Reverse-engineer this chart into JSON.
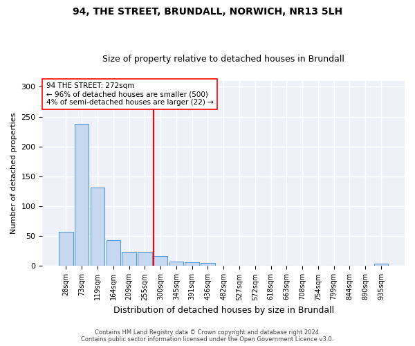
{
  "title1": "94, THE STREET, BRUNDALL, NORWICH, NR13 5LH",
  "title2": "Size of property relative to detached houses in Brundall",
  "xlabel": "Distribution of detached houses by size in Brundall",
  "ylabel": "Number of detached properties",
  "bar_labels": [
    "28sqm",
    "73sqm",
    "119sqm",
    "164sqm",
    "209sqm",
    "255sqm",
    "300sqm",
    "345sqm",
    "391sqm",
    "436sqm",
    "482sqm",
    "527sqm",
    "572sqm",
    "618sqm",
    "663sqm",
    "708sqm",
    "754sqm",
    "799sqm",
    "844sqm",
    "890sqm",
    "935sqm"
  ],
  "bar_values": [
    57,
    238,
    131,
    43,
    24,
    24,
    17,
    8,
    6,
    5,
    1,
    1,
    1,
    1,
    0,
    0,
    0,
    0,
    0,
    0,
    4
  ],
  "bar_color": "#c5d8f0",
  "bar_edge_color": "#5b9bd5",
  "red_line_x": 6.0,
  "ylim": [
    0,
    310
  ],
  "yticks": [
    0,
    50,
    100,
    150,
    200,
    250,
    300
  ],
  "annotation_line1": "94 THE STREET: 272sqm",
  "annotation_line2": "← 96% of detached houses are smaller (500)",
  "annotation_line3": "4% of semi-detached houses are larger (22) →",
  "footer1": "Contains HM Land Registry data © Crown copyright and database right 2024.",
  "footer2": "Contains public sector information licensed under the Open Government Licence v3.0.",
  "background_color": "#eef2f8",
  "title1_fontsize": 10,
  "title2_fontsize": 9,
  "xlabel_fontsize": 9,
  "ylabel_fontsize": 8,
  "tick_fontsize": 7,
  "footer_fontsize": 6
}
